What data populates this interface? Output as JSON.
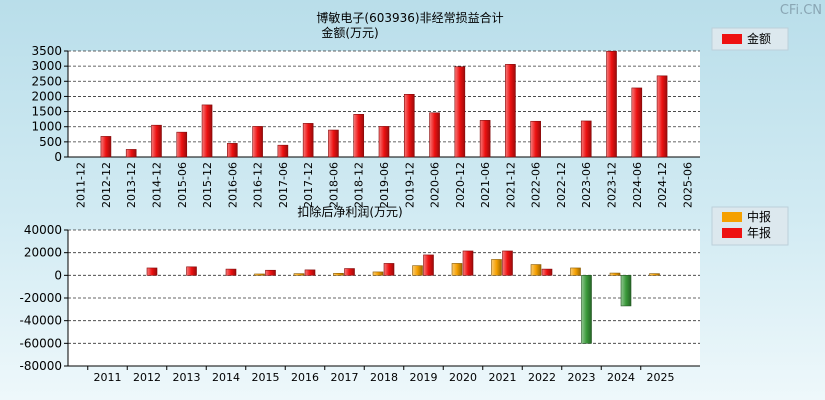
{
  "watermark": "CFi.CN",
  "chart_data": [
    {
      "type": "bar",
      "title": "博敏电子(603936)非经常损益合计",
      "ylabel": "金额(万元)",
      "categories": [
        "2011-12",
        "2012-12",
        "2013-12",
        "2014-12",
        "2015-06",
        "2015-12",
        "2016-06",
        "2016-12",
        "2017-06",
        "2017-12",
        "2018-06",
        "2018-12",
        "2019-06",
        "2019-12",
        "2020-06",
        "2020-12",
        "2021-06",
        "2021-12",
        "2022-06",
        "2022-12",
        "2023-06",
        "2023-12",
        "2024-06",
        "2024-12",
        "2025-06"
      ],
      "series": [
        {
          "name": "金额",
          "color": "#ee1111",
          "values": [
            0,
            680,
            250,
            1050,
            820,
            1720,
            450,
            1010,
            390,
            1110,
            890,
            1410,
            1010,
            2070,
            1460,
            2980,
            1210,
            3060,
            1180,
            0,
            1190,
            3490,
            2280,
            2680,
            0
          ]
        }
      ],
      "ylim": [
        0,
        3500
      ],
      "yticks": [
        0,
        500,
        1000,
        1500,
        2000,
        2500,
        3000,
        3500
      ],
      "grid": true,
      "legend": "top-right"
    },
    {
      "type": "bar",
      "title": "扣除后净利润(万元)",
      "categories": [
        "2011",
        "2012",
        "2013",
        "2014",
        "2015",
        "2016",
        "2017",
        "2018",
        "2019",
        "2020",
        "2021",
        "2022",
        "2023",
        "2024",
        "2025"
      ],
      "series": [
        {
          "name": "中报",
          "color": "#f5a000",
          "values": [
            0,
            0,
            0,
            0,
            1200,
            1500,
            1800,
            3000,
            8500,
            10500,
            14000,
            9500,
            6500,
            2000,
            1500
          ]
        },
        {
          "name": "年报",
          "color": "#ee1111",
          "values": [
            0,
            6500,
            7500,
            5500,
            4500,
            4800,
            6000,
            10500,
            18000,
            21500,
            21500,
            5500,
            -60000,
            -27000,
            0
          ]
        }
      ],
      "negative_color": "#3a9a3a",
      "ylim": [
        -80000,
        40000
      ],
      "yticks": [
        40000,
        20000,
        0,
        -20000,
        -40000,
        -60000,
        -80000
      ],
      "grid": true,
      "legend": "top-right"
    }
  ]
}
